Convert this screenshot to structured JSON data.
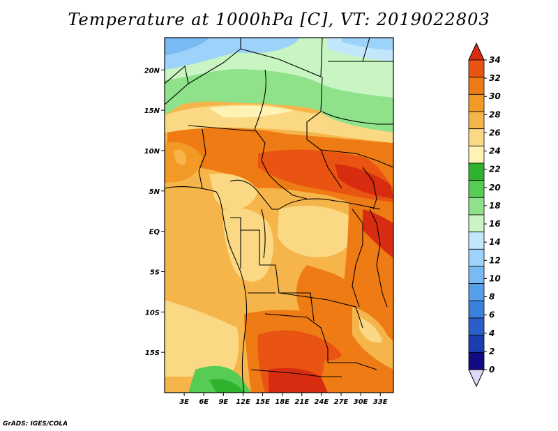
{
  "title": "Temperature at 1000hPa [C], VT: 2019022803",
  "footer": "GrADS: IGES/COLA",
  "map": {
    "lon_range": [
      0,
      35
    ],
    "lat_range": [
      -20,
      24
    ],
    "lon_ticks": [
      "3E",
      "6E",
      "9E",
      "12E",
      "15E",
      "18E",
      "21E",
      "24E",
      "27E",
      "30E",
      "33E"
    ],
    "lat_ticks": [
      "20N",
      "15N",
      "10N",
      "5N",
      "EQ",
      "5S",
      "10S",
      "15S"
    ]
  },
  "colorbar": {
    "labels": [
      "0",
      "2",
      "4",
      "6",
      "8",
      "10",
      "12",
      "14",
      "16",
      "18",
      "20",
      "22",
      "24",
      "26",
      "28",
      "30",
      "32",
      "34"
    ],
    "colors": [
      "#ddd9f5",
      "#110a82",
      "#1c3dad",
      "#2a5ec8",
      "#3b80dc",
      "#56a0ea",
      "#78bbf4",
      "#9dd2fa",
      "#c2e6fc",
      "#c8f5c2",
      "#8fe28a",
      "#56cc55",
      "#2fb32f",
      "#fff3b4",
      "#fbd884",
      "#f6b54a",
      "#f29a25",
      "#ee7b14",
      "#ea5412",
      "#d72c10"
    ],
    "triangle_low": "#ddd9f5",
    "triangle_high": "#d72c10"
  }
}
